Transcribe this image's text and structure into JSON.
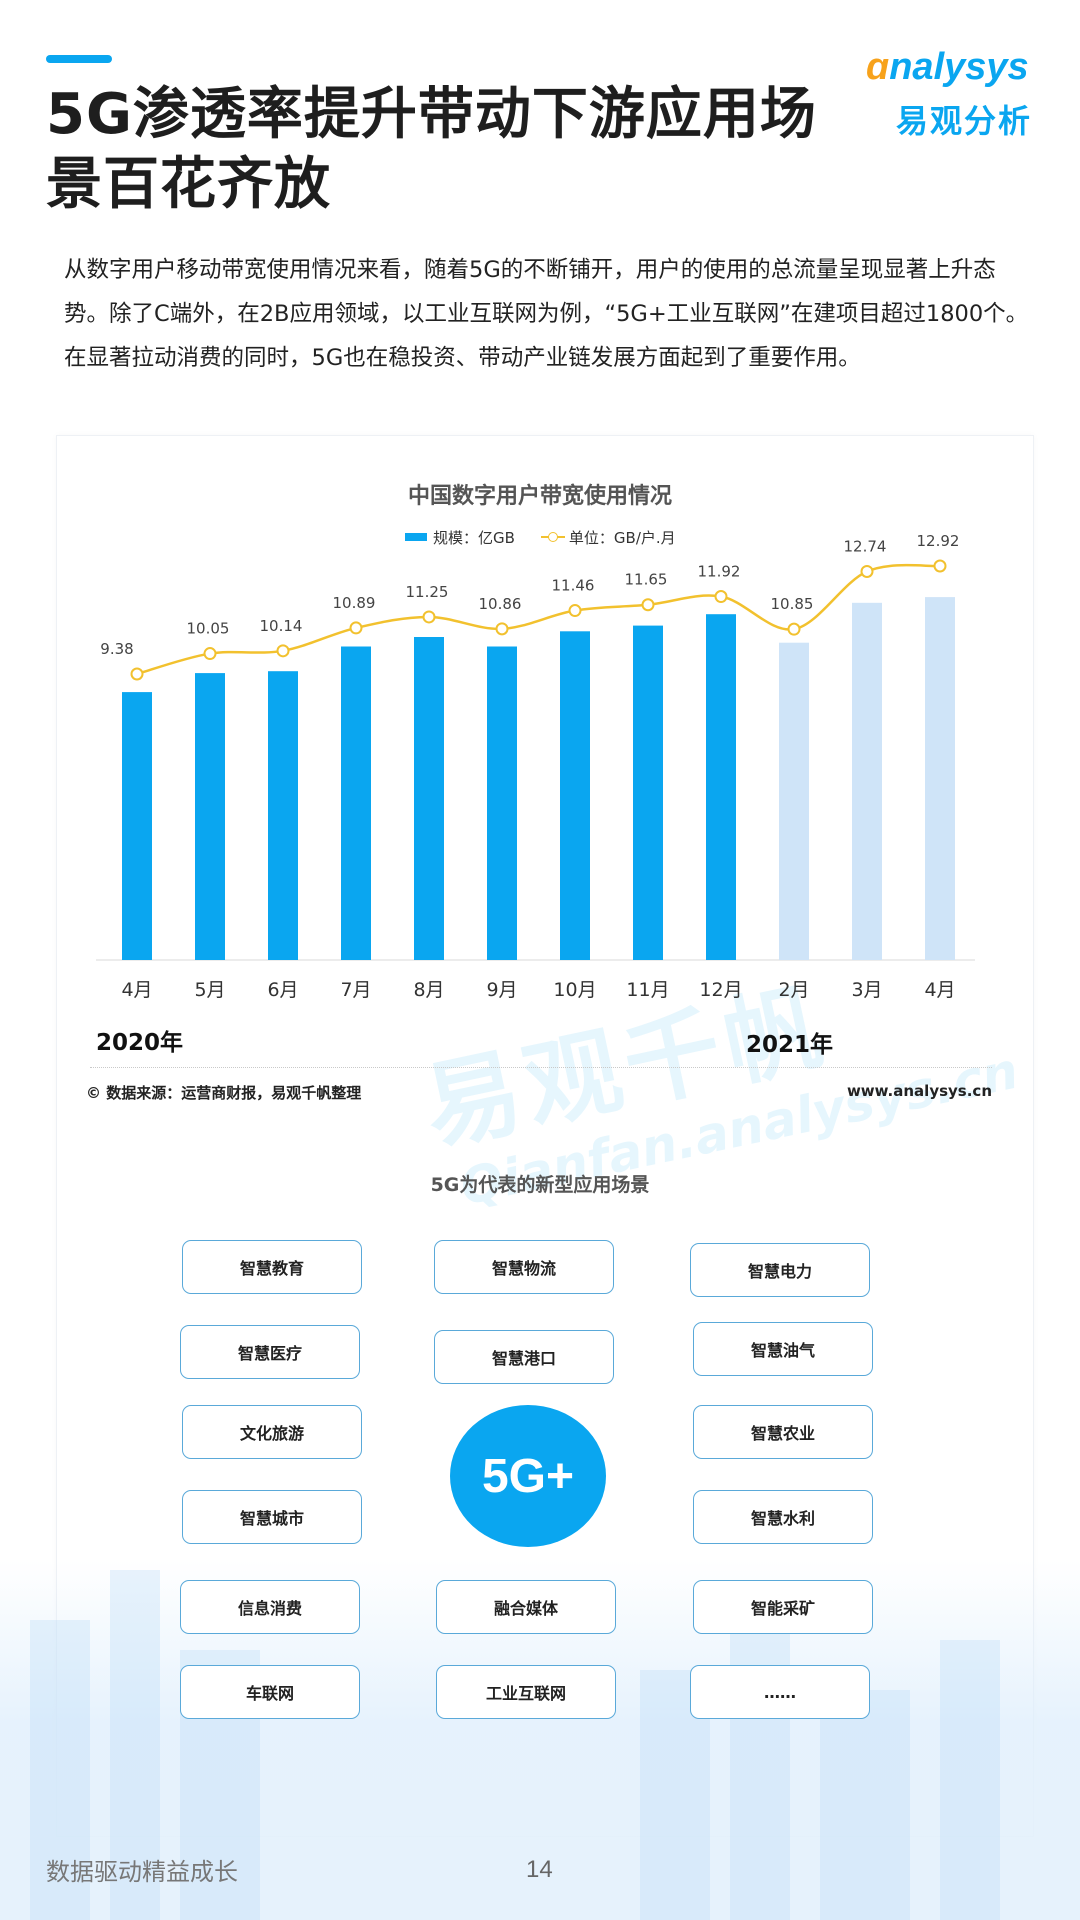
{
  "header": {
    "title": "5G渗透率提升带动下游应用场景百花齐放",
    "logo_en_o": "ɑ",
    "logo_en_rest": "nalysys",
    "logo_cn": "易观分析"
  },
  "intro": "从数字用户移动带宽使用情况来看，随着5G的不断铺开，用户的使用的总流量呈现显著上升态势。除了C端外，在2B应用领域，以工业互联网为例，“5G+工业互联网”在建项目超过1800个。在显著拉动消费的同时，5G也在稳投资、带动产业链发展方面起到了重要作用。",
  "chart_data": {
    "type": "bar",
    "title": "中国数字用户带宽使用情况",
    "categories": [
      "4月",
      "5月",
      "6月",
      "7月",
      "8月",
      "9月",
      "10月",
      "11月",
      "12月",
      "2月",
      "3月",
      "4月"
    ],
    "year_labels": [
      "2020年",
      "2021年"
    ],
    "series": [
      {
        "name": "规模：亿GB",
        "type": "bar",
        "values": [
          141,
          151,
          152,
          165,
          170,
          165,
          173,
          176,
          182,
          167,
          188,
          191
        ],
        "colors": {
          "actual": "#0aa6f0",
          "forecast": "#cfe4f8"
        }
      },
      {
        "name": "单位：GB/户.月",
        "type": "line",
        "values": [
          9.38,
          10.05,
          10.14,
          10.89,
          11.25,
          10.86,
          11.46,
          11.65,
          11.92,
          10.85,
          12.74,
          12.92
        ],
        "color": "#f2c12e"
      }
    ],
    "legend_position": "top-center"
  },
  "source": "© 数据来源：运营商财报，易观千帆整理",
  "site": "www.analysys.cn",
  "watermark": {
    "cn": "易观千帆",
    "en": "Qianfan.analysys.cn"
  },
  "scenarios": {
    "title": "5G为代表的新型应用场景",
    "center": "5G+",
    "left": [
      "智慧教育",
      "智慧医疗",
      "文化旅游",
      "智慧城市",
      "信息消费",
      "车联网"
    ],
    "middle": [
      "智慧物流",
      "智慧港口",
      "融合媒体",
      "工业互联网"
    ],
    "right": [
      "智慧电力",
      "智慧油气",
      "智慧农业",
      "智慧水利",
      "智能采矿",
      "……"
    ]
  },
  "footer": {
    "slogan": "数据驱动精益成长",
    "page": "14"
  },
  "colors": {
    "accent": "#0aa6f0",
    "orange": "#f7a21b",
    "line": "#f2c12e",
    "forecast_bar": "#cfe4f8"
  }
}
